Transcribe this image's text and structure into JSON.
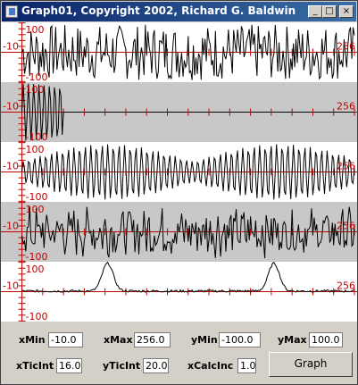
{
  "window": {
    "title": "Graph01, Copyright 2002, Richard G. Baldwin",
    "buttons": {
      "minimize": "_",
      "maximize": "□",
      "close": "×"
    }
  },
  "plots": {
    "y_max_label": "100",
    "y_min_label": "-100",
    "x_min_label": "-10",
    "x_max_label": "256",
    "colors": {
      "axes": "#c00000",
      "trace": "#000000",
      "band_light": "#ffffff",
      "band_dark": "#c8c8c8"
    }
  },
  "controls": {
    "xMin": {
      "label": "xMin",
      "value": "-10.0"
    },
    "xMax": {
      "label": "xMax",
      "value": "256.0"
    },
    "yMin": {
      "label": "yMin",
      "value": "-100.0"
    },
    "yMax": {
      "label": "yMax",
      "value": "100.0"
    },
    "xTicInt": {
      "label": "xTicInt",
      "value": "16.0"
    },
    "yTicInt": {
      "label": "yTicInt",
      "value": "20.0"
    },
    "xCalcInc": {
      "label": "xCalcInc",
      "value": "1.0"
    },
    "graph_button": "Graph"
  }
}
